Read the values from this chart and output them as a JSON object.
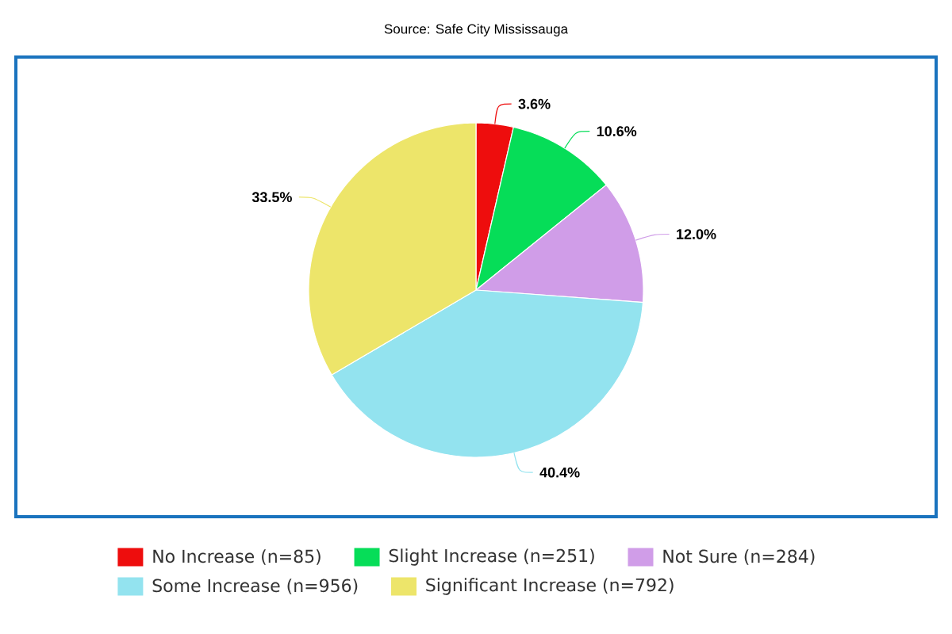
{
  "chart_data": {
    "type": "pie",
    "categories": [
      "No Increase (n=85)",
      "Slight Increase (n=251)",
      "Not Sure (n=284)",
      "Some Increase (n=956)",
      "Significant Increase (n=792)"
    ],
    "values": [
      3.6,
      10.6,
      12.0,
      40.4,
      33.5
    ],
    "colors": [
      "#ee0d0d",
      "#06dd58",
      "#d09de8",
      "#93e3ef",
      "#ede56a"
    ],
    "value_labels": [
      "3.6%",
      "10.6%",
      "12.0%",
      "40.4%",
      "33.5%"
    ],
    "legend": "bottom",
    "annotations": [
      "Source: Safe City Mississauga"
    ]
  }
}
